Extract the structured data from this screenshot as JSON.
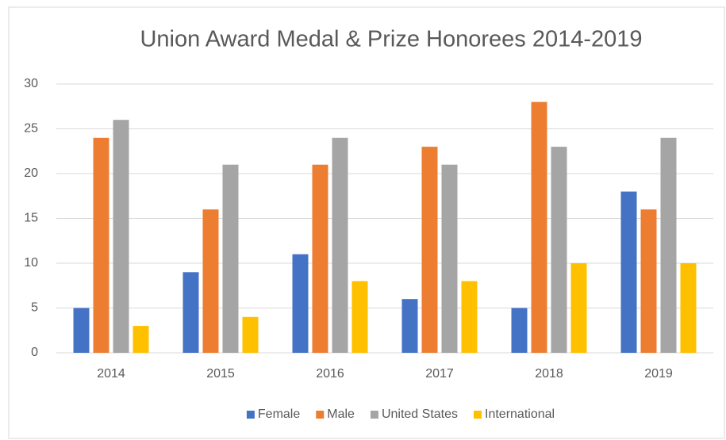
{
  "chart_data": {
    "type": "bar",
    "title": "Union Award Medal & Prize Honorees 2014-2019",
    "categories": [
      "2014",
      "2015",
      "2016",
      "2017",
      "2018",
      "2019"
    ],
    "series": [
      {
        "name": "Female",
        "color": "#4472c4",
        "values": [
          5,
          9,
          11,
          6,
          5,
          18
        ]
      },
      {
        "name": "Male",
        "color": "#ed7d31",
        "values": [
          24,
          16,
          21,
          23,
          28,
          16
        ]
      },
      {
        "name": "United States",
        "color": "#a5a5a5",
        "values": [
          26,
          21,
          24,
          21,
          23,
          24
        ]
      },
      {
        "name": "International",
        "color": "#ffc000",
        "values": [
          3,
          4,
          8,
          8,
          10,
          10
        ]
      }
    ],
    "ylim": [
      0,
      30
    ],
    "yticks": [
      0,
      5,
      10,
      15,
      20,
      25,
      30
    ],
    "grid": true,
    "legend": "bottom"
  }
}
